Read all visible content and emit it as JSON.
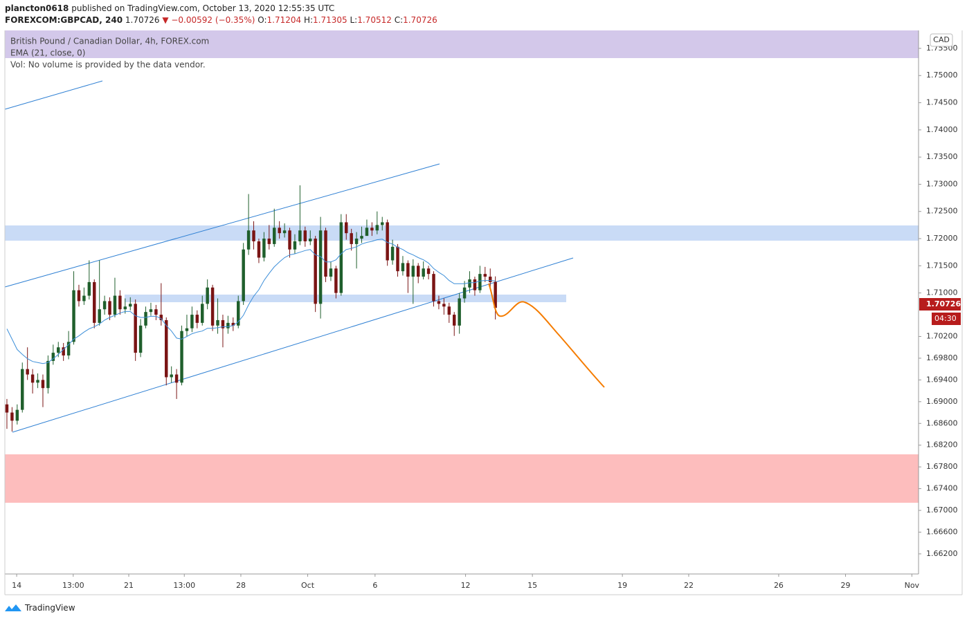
{
  "header": {
    "publisher": "plancton0618",
    "published": "published on TradingView.com, October 13, 2020 12:55:35 UTC",
    "symbol": "FOREXCOM:GBPCAD, 240",
    "last": "1.70726",
    "change": "▼ −0.00592 (−0.35%)",
    "open_label": "O:",
    "open": "1.71204",
    "high_label": "H:",
    "high": "1.71305",
    "low_label": "L:",
    "low": "1.70512",
    "close_label": "C:",
    "close": "1.70726"
  },
  "chart_data": {
    "type": "candlestick",
    "title": "British Pound / Canadian Dollar, 4h, FOREX.com",
    "volume_note": "Vol: No volume is provided by the data vendor.",
    "currency": "CAD",
    "last_label": "1.70726",
    "countdown": "04:30",
    "up_color": "#1f5f2c",
    "down_color": "#7a1414",
    "grid": false,
    "xlim": [
      -0.4,
      177.3
    ],
    "xticks": [
      {
        "value": 1.9,
        "label": "14"
      },
      {
        "value": 12.9,
        "label": "13:00"
      },
      {
        "value": 23.7,
        "label": "21"
      },
      {
        "value": 34.5,
        "label": "13:00"
      },
      {
        "value": 45.5,
        "label": "28"
      },
      {
        "value": 58.5,
        "label": "Oct"
      },
      {
        "value": 71.6,
        "label": "6"
      },
      {
        "value": 89.2,
        "label": "12"
      },
      {
        "value": 102.2,
        "label": "15"
      },
      {
        "value": 119.7,
        "label": "19"
      },
      {
        "value": 132.6,
        "label": "22"
      },
      {
        "value": 150.1,
        "label": "26"
      },
      {
        "value": 163.1,
        "label": "29"
      },
      {
        "value": 176.0,
        "label": "Nov"
      }
    ],
    "ylim": [
      1.6583,
      1.7583
    ],
    "yticks": [
      {
        "value": 1.755,
        "label": "1.75500"
      },
      {
        "value": 1.75,
        "label": "1.75000"
      },
      {
        "value": 1.745,
        "label": "1.74500"
      },
      {
        "value": 1.74,
        "label": "1.74000"
      },
      {
        "value": 1.735,
        "label": "1.73500"
      },
      {
        "value": 1.73,
        "label": "1.73000"
      },
      {
        "value": 1.725,
        "label": "1.72500"
      },
      {
        "value": 1.72,
        "label": "1.72000"
      },
      {
        "value": 1.715,
        "label": "1.71500"
      },
      {
        "value": 1.71,
        "label": "1.71000"
      },
      {
        "value": 1.702,
        "label": "1.70200"
      },
      {
        "value": 1.698,
        "label": "1.69800"
      },
      {
        "value": 1.694,
        "label": "1.69400"
      },
      {
        "value": 1.69,
        "label": "1.69000"
      },
      {
        "value": 1.686,
        "label": "1.68600"
      },
      {
        "value": 1.682,
        "label": "1.68200"
      },
      {
        "value": 1.678,
        "label": "1.67800"
      },
      {
        "value": 1.674,
        "label": "1.67400"
      },
      {
        "value": 1.67,
        "label": "1.67000"
      },
      {
        "value": 1.666,
        "label": "1.66600"
      },
      {
        "value": 1.662,
        "label": "1.66200"
      }
    ],
    "open": [
      1.6895,
      1.688,
      1.6865,
      1.6885,
      1.696,
      1.695,
      1.6935,
      1.694,
      1.6925,
      1.6975,
      1.699,
      1.7,
      1.6985,
      1.701,
      1.7105,
      1.7085,
      1.7095,
      1.712,
      1.7045,
      1.707,
      1.7085,
      1.706,
      1.7095,
      1.707,
      1.7075,
      1.708,
      1.699,
      1.704,
      1.7065,
      1.707,
      1.706,
      1.705,
      1.6945,
      1.695,
      1.6935,
      1.703,
      1.7035,
      1.706,
      1.7045,
      1.708,
      1.711,
      1.704,
      1.705,
      1.7035,
      1.7045,
      1.704,
      1.7085,
      1.718,
      1.7215,
      1.7195,
      1.7165,
      1.72,
      1.719,
      1.722,
      1.721,
      1.7215,
      1.718,
      1.7195,
      1.7215,
      1.7195,
      1.72,
      1.708,
      1.7215,
      1.713,
      1.7145,
      1.71,
      1.723,
      1.721,
      1.719,
      1.72,
      1.7205,
      1.722,
      1.7215,
      1.7225,
      1.723,
      1.716,
      1.7185,
      1.714,
      1.7155,
      1.713,
      1.715,
      1.713,
      1.7145,
      1.7135,
      1.7085,
      1.708,
      1.7075,
      1.706,
      1.704,
      1.709,
      1.711,
      1.7125,
      1.7105,
      1.7135,
      1.713,
      1.71204
    ],
    "high": [
      1.6905,
      1.689,
      1.6895,
      1.6972,
      1.7,
      1.696,
      1.6952,
      1.695,
      1.6985,
      1.7005,
      1.701,
      1.7008,
      1.703,
      1.714,
      1.7115,
      1.711,
      1.716,
      1.7125,
      1.716,
      1.7095,
      1.7092,
      1.7128,
      1.7105,
      1.709,
      1.7092,
      1.7088,
      1.7052,
      1.7075,
      1.7082,
      1.7078,
      1.7118,
      1.7055,
      1.6965,
      1.696,
      1.704,
      1.706,
      1.7075,
      1.7068,
      1.7095,
      1.7125,
      1.7115,
      1.709,
      1.706,
      1.7058,
      1.7055,
      1.7095,
      1.7192,
      1.7282,
      1.7232,
      1.72,
      1.7212,
      1.7225,
      1.7255,
      1.7232,
      1.7228,
      1.722,
      1.7208,
      1.7298,
      1.7222,
      1.7215,
      1.7205,
      1.724,
      1.722,
      1.7158,
      1.715,
      1.7245,
      1.7245,
      1.7218,
      1.7212,
      1.7222,
      1.7235,
      1.723,
      1.725,
      1.724,
      1.7235,
      1.7198,
      1.719,
      1.7168,
      1.716,
      1.7162,
      1.7155,
      1.7158,
      1.715,
      1.714,
      1.7095,
      1.709,
      1.7082,
      1.7065,
      1.71,
      1.7122,
      1.714,
      1.713,
      1.715,
      1.7148,
      1.7145,
      1.71305
    ],
    "low": [
      1.685,
      1.6845,
      1.6858,
      1.688,
      1.694,
      1.6915,
      1.6925,
      1.689,
      1.6915,
      1.6968,
      1.6982,
      1.6975,
      1.6978,
      1.7005,
      1.7075,
      1.7078,
      1.7088,
      1.7035,
      1.704,
      1.706,
      1.705,
      1.7055,
      1.706,
      1.7062,
      1.7068,
      1.6975,
      1.6982,
      1.7035,
      1.7058,
      1.705,
      1.704,
      1.693,
      1.6935,
      1.6905,
      1.693,
      1.702,
      1.7028,
      1.7035,
      1.704,
      1.707,
      1.703,
      1.7025,
      1.7,
      1.7025,
      1.703,
      1.7035,
      1.7078,
      1.717,
      1.718,
      1.7155,
      1.7158,
      1.718,
      1.7185,
      1.72,
      1.7202,
      1.7165,
      1.7172,
      1.7188,
      1.7185,
      1.7188,
      1.7065,
      1.7053,
      1.712,
      1.7122,
      1.709,
      1.7095,
      1.7198,
      1.7178,
      1.7145,
      1.7192,
      1.721,
      1.7205,
      1.7208,
      1.7215,
      1.715,
      1.7152,
      1.713,
      1.7132,
      1.71,
      1.708,
      1.7118,
      1.7125,
      1.7125,
      1.7075,
      1.707,
      1.706,
      1.7045,
      1.7021,
      1.7025,
      1.7082,
      1.71,
      1.7095,
      1.71,
      1.712,
      1.711,
      1.70512
    ],
    "close": [
      1.688,
      1.6865,
      1.6885,
      1.696,
      1.695,
      1.6935,
      1.694,
      1.6925,
      1.6975,
      1.699,
      1.7,
      1.6985,
      1.701,
      1.7105,
      1.7085,
      1.7095,
      1.712,
      1.7045,
      1.707,
      1.7085,
      1.706,
      1.7095,
      1.707,
      1.7075,
      1.708,
      1.699,
      1.704,
      1.7065,
      1.707,
      1.706,
      1.705,
      1.6945,
      1.695,
      1.6935,
      1.703,
      1.7035,
      1.706,
      1.7045,
      1.708,
      1.711,
      1.704,
      1.705,
      1.7035,
      1.7045,
      1.704,
      1.7085,
      1.718,
      1.7215,
      1.7195,
      1.7165,
      1.72,
      1.719,
      1.722,
      1.721,
      1.7215,
      1.718,
      1.7195,
      1.7215,
      1.7195,
      1.72,
      1.708,
      1.7215,
      1.713,
      1.7145,
      1.71,
      1.723,
      1.721,
      1.719,
      1.72,
      1.7205,
      1.722,
      1.7215,
      1.7225,
      1.723,
      1.716,
      1.7185,
      1.714,
      1.7155,
      1.713,
      1.715,
      1.713,
      1.7145,
      1.7135,
      1.7085,
      1.708,
      1.7075,
      1.706,
      1.704,
      1.709,
      1.711,
      1.7125,
      1.7105,
      1.7135,
      1.713,
      1.712,
      1.70726
    ],
    "ema": {
      "name": "EMA (21, close, 0)",
      "color": "#3d8fd9",
      "values": [
        1.7034,
        1.7015,
        1.6996,
        1.6987,
        1.6979,
        1.6974,
        1.6972,
        1.697,
        1.6972,
        1.6979,
        1.6987,
        1.6996,
        1.7005,
        1.7015,
        1.7021,
        1.7028,
        1.7034,
        1.7038,
        1.7043,
        1.705,
        1.7055,
        1.7059,
        1.7063,
        1.7066,
        1.7066,
        1.7058,
        1.7055,
        1.7055,
        1.7057,
        1.7057,
        1.7053,
        1.704,
        1.703,
        1.7017,
        1.7015,
        1.702,
        1.7025,
        1.7028,
        1.703,
        1.7035,
        1.7035,
        1.7036,
        1.7038,
        1.7038,
        1.704,
        1.7047,
        1.7059,
        1.7078,
        1.7094,
        1.7106,
        1.7123,
        1.7136,
        1.7148,
        1.7157,
        1.7165,
        1.717,
        1.7172,
        1.7175,
        1.7178,
        1.718,
        1.717,
        1.7167,
        1.7157,
        1.7157,
        1.7161,
        1.7172,
        1.718,
        1.7182,
        1.7185,
        1.719,
        1.7193,
        1.7195,
        1.7198,
        1.7199,
        1.7193,
        1.719,
        1.7184,
        1.718,
        1.7174,
        1.717,
        1.7165,
        1.7161,
        1.7155,
        1.7145,
        1.7138,
        1.7132,
        1.7123,
        1.7117,
        1.7117,
        1.7117,
        1.7119,
        1.7119,
        1.7122,
        1.7123,
        1.7123,
        1.7122
      ]
    }
  },
  "footer": {
    "brand": "TradingView"
  }
}
